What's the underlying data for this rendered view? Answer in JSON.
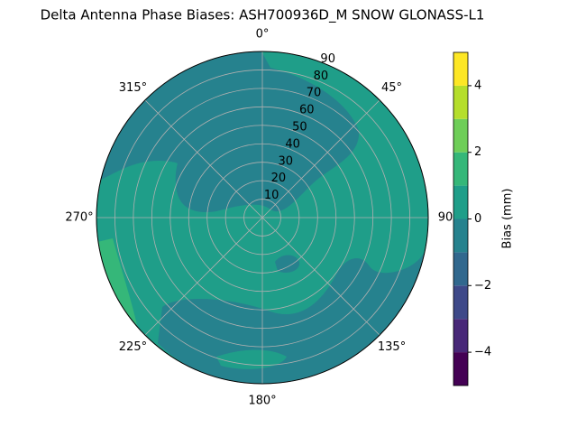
{
  "chart_data": {
    "type": "polar-contour",
    "title": "Delta Antenna Phase Biases: ASH700936D_M    SNOW GLONASS-L1",
    "colorbar_label": "Bias (mm)",
    "levels": [
      -5,
      -4,
      -3,
      -2,
      -1,
      0,
      1,
      2,
      3,
      4,
      5
    ],
    "colors": [
      "#440154",
      "#482878",
      "#3e4989",
      "#31688e",
      "#26828e",
      "#1f9e89",
      "#35b779",
      "#6ece58",
      "#b5de2b",
      "#fde725"
    ],
    "cticks": [
      {
        "value": -4,
        "label": "−4"
      },
      {
        "value": -2,
        "label": "−2"
      },
      0,
      2,
      4
    ],
    "rlim": [
      0,
      90
    ],
    "rticks": [
      10,
      20,
      30,
      40,
      50,
      60,
      70,
      80,
      90
    ],
    "theta_ticks": [
      {
        "value": 0,
        "label": "0°"
      },
      {
        "value": 45,
        "label": "45°"
      },
      {
        "value": 90,
        "label": "90"
      },
      {
        "value": 135,
        "label": "135°"
      },
      {
        "value": 180,
        "label": "180°"
      },
      {
        "value": 225,
        "label": "225°"
      },
      {
        "value": 270,
        "label": "270°"
      },
      {
        "value": 315,
        "label": "315°"
      }
    ],
    "grid": true
  }
}
